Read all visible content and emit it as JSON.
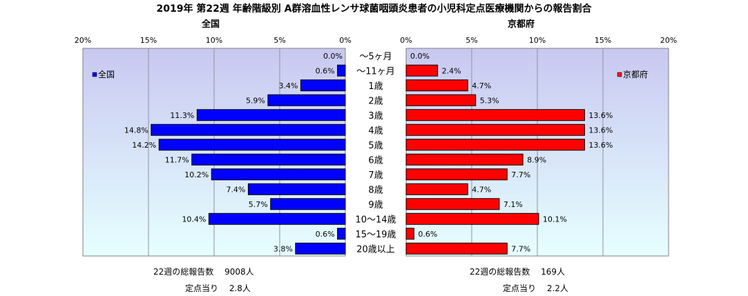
{
  "title": "2019年 第22週 年齢階級別 A群溶血性レンサ球菌咽頭炎患者の小児科定点医療機関からの報告割合",
  "left_heading": "全国",
  "right_heading": "京都府",
  "footer": {
    "left_total": "22週の総報告数　 9008人",
    "left_per": "定点当り　 2.8人",
    "right_total": "22週の総報告数　 169人",
    "right_per": "定点当り　 2.2人"
  },
  "colors": {
    "national": "#0000ff",
    "kyoto": "#ff0000",
    "plot_bg_top": "#c8c8f0",
    "plot_bg_bottom": "#e6ffff"
  },
  "chart_data": [
    {
      "type": "bar",
      "orientation": "horizontal",
      "direction": "right-to-left",
      "series": [
        {
          "name": "全国",
          "values": [
            0.0,
            0.6,
            3.4,
            5.9,
            11.3,
            14.8,
            14.2,
            11.7,
            10.2,
            7.4,
            5.7,
            10.4,
            0.6,
            3.8
          ]
        }
      ],
      "categories": [
        "～5ヶ月",
        "～11ヶ月",
        "1歳",
        "2歳",
        "3歳",
        "4歳",
        "5歳",
        "6歳",
        "7歳",
        "8歳",
        "9歳",
        "10～14歳",
        "15～19歳",
        "20歳以上"
      ],
      "data_labels": [
        "0.0%",
        "0.6%",
        "3.4%",
        "5.9%",
        "11.3%",
        "14.8%",
        "14.2%",
        "11.7%",
        "10.2%",
        "7.4%",
        "5.7%",
        "10.4%",
        "0.6%",
        "3.8%"
      ],
      "xlim": [
        0,
        20
      ],
      "xticks": [
        "20%",
        "15%",
        "10%",
        "5%",
        "0%"
      ],
      "legend": "top-left",
      "grid": true
    },
    {
      "type": "bar",
      "orientation": "horizontal",
      "direction": "left-to-right",
      "series": [
        {
          "name": "京都府",
          "values": [
            0.0,
            2.4,
            4.7,
            5.3,
            13.6,
            13.6,
            13.6,
            8.9,
            7.7,
            4.7,
            7.1,
            10.1,
            0.6,
            7.7
          ]
        }
      ],
      "categories": [
        "～5ヶ月",
        "～11ヶ月",
        "1歳",
        "2歳",
        "3歳",
        "4歳",
        "5歳",
        "6歳",
        "7歳",
        "8歳",
        "9歳",
        "10～14歳",
        "15～19歳",
        "20歳以上"
      ],
      "data_labels": [
        "0.0%",
        "2.4%",
        "4.7%",
        "5.3%",
        "13.6%",
        "13.6%",
        "13.6%",
        "8.9%",
        "7.7%",
        "4.7%",
        "7.1%",
        "10.1%",
        "0.6%",
        "7.7%"
      ],
      "xlim": [
        0,
        20
      ],
      "xticks": [
        "0%",
        "5%",
        "10%",
        "15%",
        "20%"
      ],
      "legend": "top-right",
      "grid": true
    }
  ]
}
